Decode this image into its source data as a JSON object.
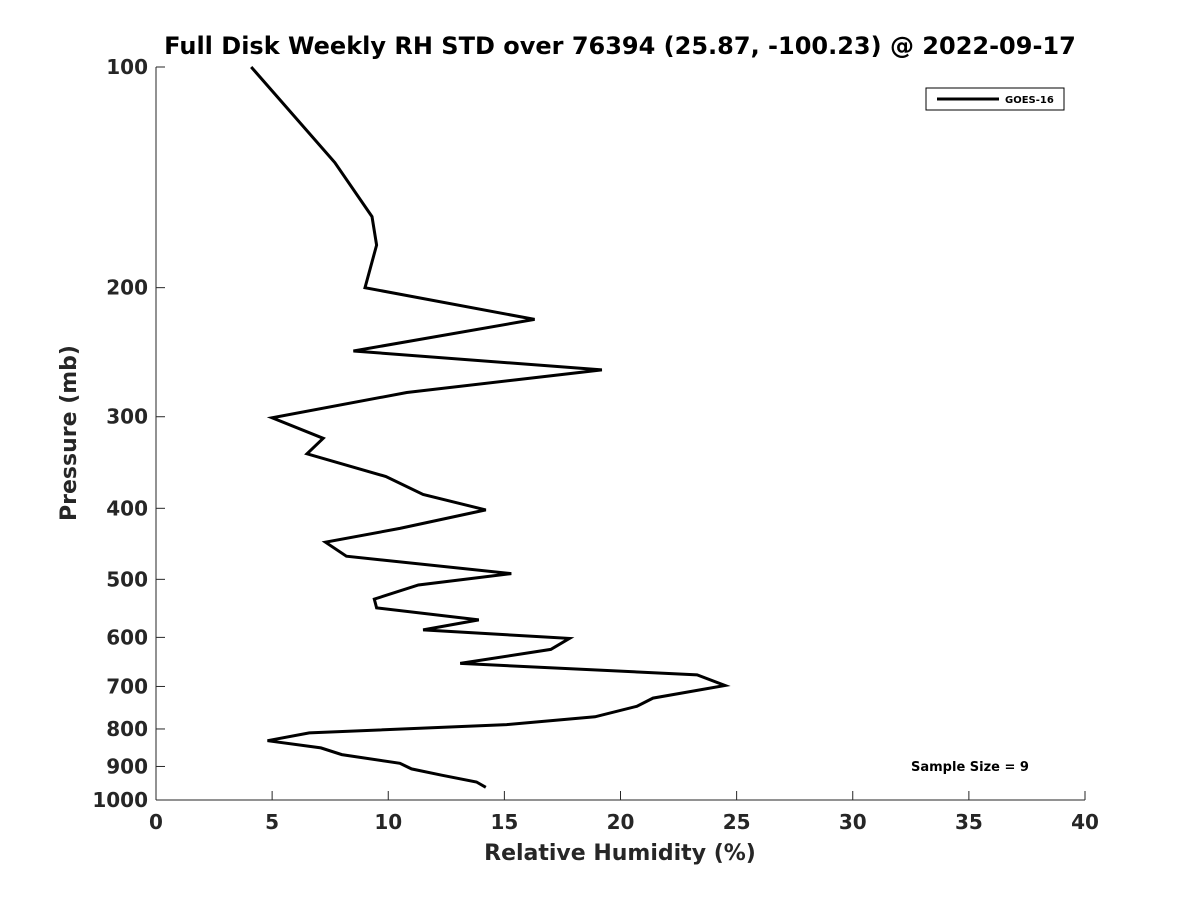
{
  "chart_data": {
    "type": "line",
    "title": "Full Disk Weekly RH STD over 76394 (25.87, -100.23) @ 2022-09-17",
    "xlabel": "Relative Humidity (%)",
    "ylabel": "Pressure (mb)",
    "xlim": [
      0,
      40
    ],
    "ylim": [
      100,
      1000
    ],
    "y_scale": "log",
    "y_reversed": true,
    "xticks": [
      0,
      5,
      10,
      15,
      20,
      25,
      30,
      35,
      40
    ],
    "yticks": [
      100,
      200,
      300,
      400,
      500,
      600,
      700,
      800,
      900,
      1000
    ],
    "grid": false,
    "legend_position": "top-right",
    "annotation": "Sample Size = 9",
    "series": [
      {
        "name": "GOES-16",
        "color": "#000000",
        "points": [
          [
            4.1,
            100
          ],
          [
            7.7,
            135
          ],
          [
            9.3,
            160
          ],
          [
            9.5,
            175
          ],
          [
            9.0,
            200
          ],
          [
            16.3,
            221
          ],
          [
            8.5,
            244
          ],
          [
            19.2,
            259
          ],
          [
            10.8,
            278
          ],
          [
            5.0,
            301
          ],
          [
            7.2,
            321
          ],
          [
            6.5,
            337
          ],
          [
            9.9,
            362
          ],
          [
            11.5,
            383
          ],
          [
            14.2,
            402
          ],
          [
            10.5,
            426
          ],
          [
            7.3,
            445
          ],
          [
            8.2,
            465
          ],
          [
            15.3,
            491
          ],
          [
            11.3,
            509
          ],
          [
            9.4,
            532
          ],
          [
            9.5,
            547
          ],
          [
            13.9,
            568
          ],
          [
            11.5,
            586
          ],
          [
            17.8,
            602
          ],
          [
            17.0,
            623
          ],
          [
            13.1,
            651
          ],
          [
            23.3,
            675
          ],
          [
            24.5,
            698
          ],
          [
            21.4,
            726
          ],
          [
            20.7,
            745
          ],
          [
            18.9,
            770
          ],
          [
            15.1,
            789
          ],
          [
            6.6,
            810
          ],
          [
            4.8,
            830
          ],
          [
            7.1,
            849
          ],
          [
            8.0,
            867
          ],
          [
            10.5,
            891
          ],
          [
            11.0,
            907
          ],
          [
            12.3,
            925
          ],
          [
            13.8,
            945
          ],
          [
            14.2,
            961
          ]
        ]
      }
    ]
  }
}
